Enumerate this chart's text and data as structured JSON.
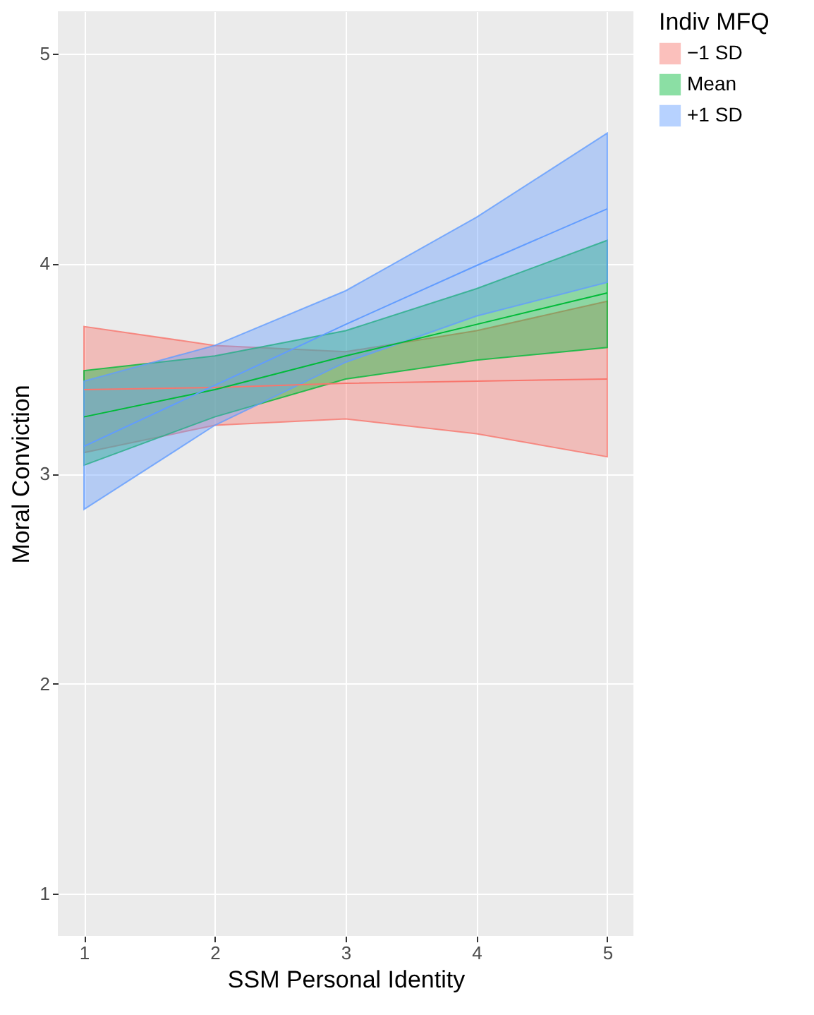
{
  "chart_data": {
    "type": "line",
    "xlabel": "SSM Personal Identity",
    "ylabel": "Moral Conviction",
    "legend_title": "Indiv MFQ",
    "x": [
      1,
      2,
      3,
      4,
      5
    ],
    "xlim": [
      0.8,
      5.2
    ],
    "xticks": [
      1,
      2,
      3,
      4,
      5
    ],
    "ylim": [
      0.8,
      5.2
    ],
    "yticks": [
      1,
      2,
      3,
      4,
      5
    ],
    "grid": true,
    "legend": "right",
    "marker": "none",
    "line_style": "solid",
    "series": [
      {
        "name": "−1 SD",
        "color": "#f8766d",
        "values": [
          3.4,
          3.41,
          3.43,
          3.44,
          3.45
        ],
        "lower": [
          3.1,
          3.23,
          3.26,
          3.19,
          3.08
        ],
        "upper": [
          3.7,
          3.61,
          3.58,
          3.68,
          3.82
        ]
      },
      {
        "name": "Mean",
        "color": "#00ba38",
        "values": [
          3.27,
          3.4,
          3.56,
          3.71,
          3.86
        ],
        "lower": [
          3.04,
          3.27,
          3.45,
          3.54,
          3.6
        ],
        "upper": [
          3.49,
          3.56,
          3.68,
          3.88,
          4.11
        ]
      },
      {
        "name": "+1 SD",
        "color": "#619cff",
        "values": [
          3.13,
          3.42,
          3.71,
          3.99,
          4.26
        ],
        "lower": [
          2.83,
          3.23,
          3.53,
          3.75,
          3.91
        ],
        "upper": [
          3.44,
          3.61,
          3.87,
          4.22,
          4.62
        ]
      }
    ]
  }
}
